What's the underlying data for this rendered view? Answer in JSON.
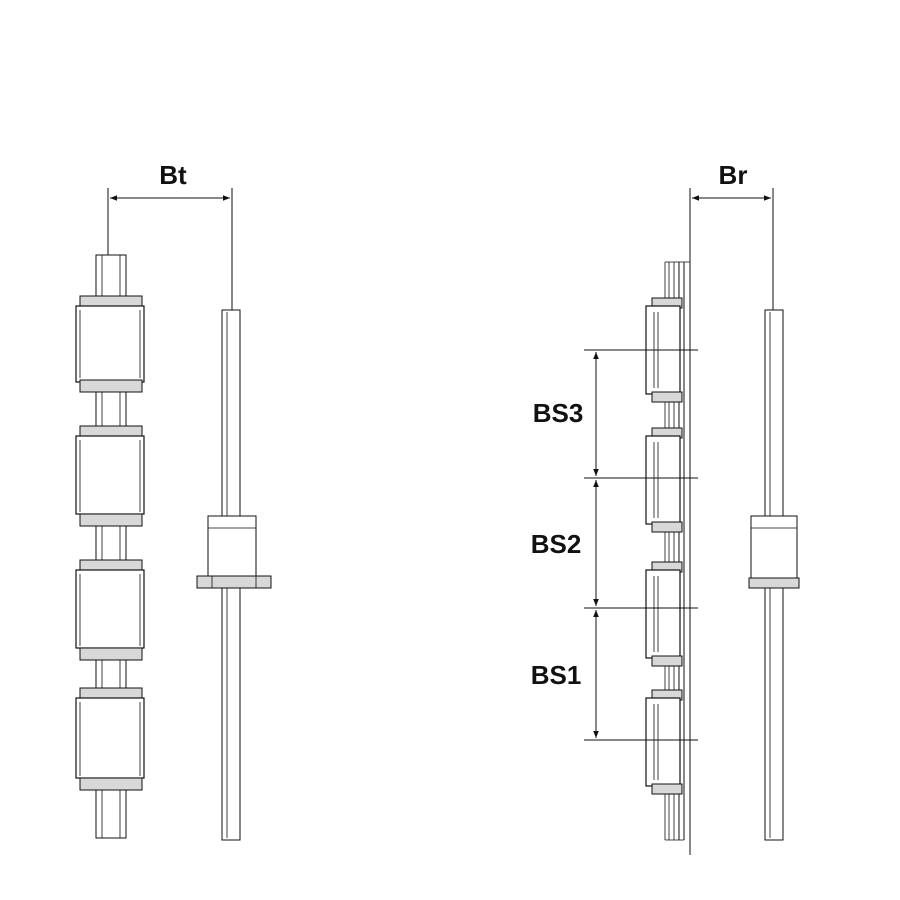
{
  "labels": {
    "bt": "Bt",
    "br": "Br",
    "bs3": "BS3",
    "bs2": "BS2",
    "bs1": "BS1"
  },
  "colors": {
    "line": "#111111",
    "fill_light": "#d8d8d8",
    "background": "#ffffff"
  }
}
